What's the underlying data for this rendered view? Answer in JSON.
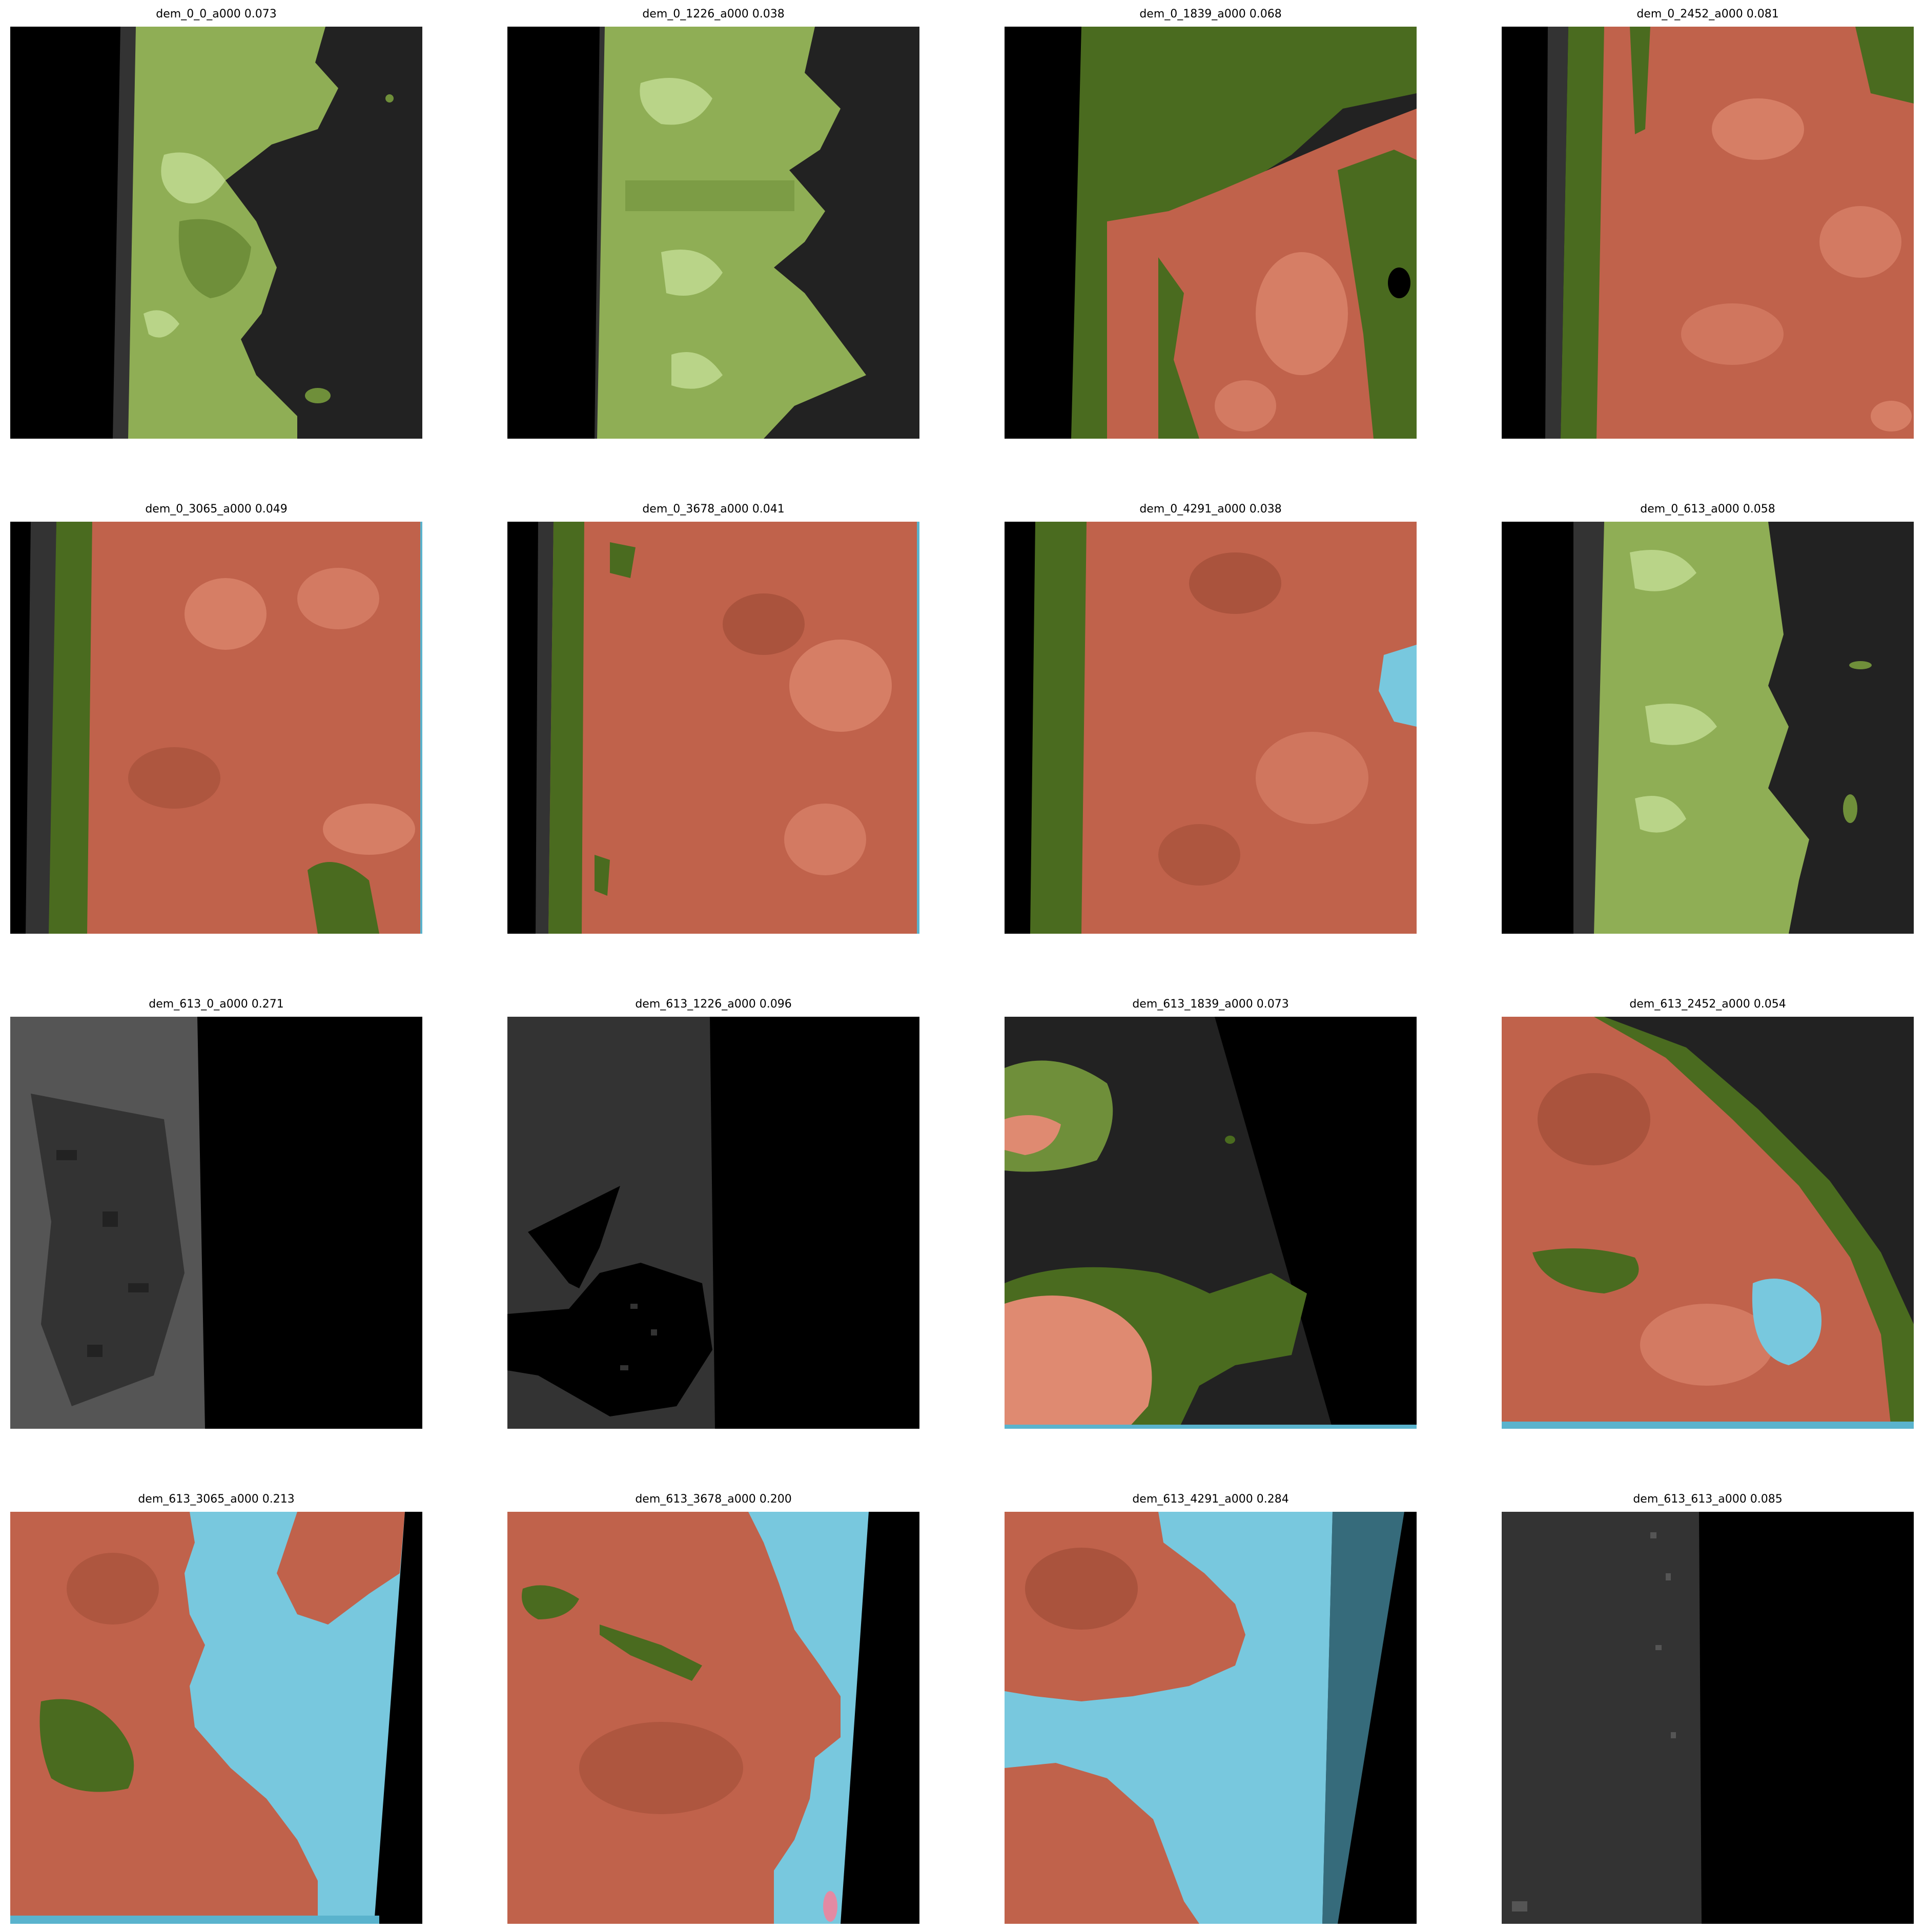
{
  "colors": {
    "black": "#000000",
    "dark_gray": "#222222",
    "gray": "#333333",
    "light_gray": "#555555",
    "green_dark": "#4a6b1f",
    "green_mid": "#6f8f3a",
    "green_light": "#8fae55",
    "green_pale": "#b9d488",
    "salmon_dark": "#9b4a33",
    "salmon": "#c0624b",
    "salmon_light": "#df8a71",
    "blue": "#5ab3cd",
    "blue_light": "#78c8de",
    "pink": "#e38aa3"
  },
  "panels": [
    {
      "name": "dem_0_0_a000",
      "score": "0.073"
    },
    {
      "name": "dem_0_1226_a000",
      "score": "0.038"
    },
    {
      "name": "dem_0_1839_a000",
      "score": "0.068"
    },
    {
      "name": "dem_0_2452_a000",
      "score": "0.081"
    },
    {
      "name": "dem_0_3065_a000",
      "score": "0.049"
    },
    {
      "name": "dem_0_3678_a000",
      "score": "0.041"
    },
    {
      "name": "dem_0_4291_a000",
      "score": "0.038"
    },
    {
      "name": "dem_0_613_a000",
      "score": "0.058"
    },
    {
      "name": "dem_613_0_a000",
      "score": "0.271"
    },
    {
      "name": "dem_613_1226_a000",
      "score": "0.096"
    },
    {
      "name": "dem_613_1839_a000",
      "score": "0.073"
    },
    {
      "name": "dem_613_2452_a000",
      "score": "0.054"
    },
    {
      "name": "dem_613_3065_a000",
      "score": "0.213"
    },
    {
      "name": "dem_613_3678_a000",
      "score": "0.200"
    },
    {
      "name": "dem_613_4291_a000",
      "score": "0.284"
    },
    {
      "name": "dem_613_613_a000",
      "score": "0.085"
    }
  ]
}
